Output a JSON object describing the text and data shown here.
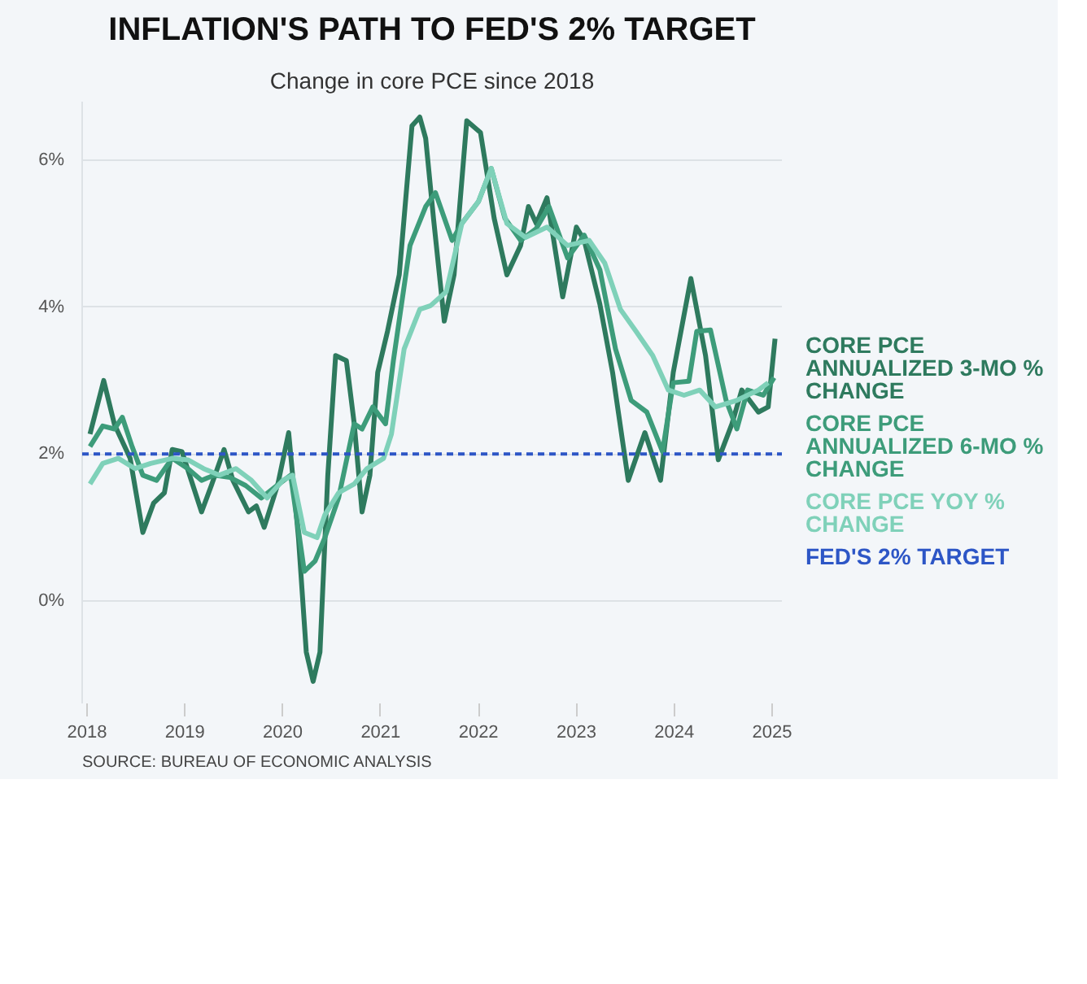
{
  "chart_data": {
    "type": "line",
    "title": "INFLATION'S PATH TO FED'S 2% TARGET",
    "subtitle": "Change in core PCE since 2018",
    "annotations": [
      "SOURCE: BUREAU OF ECONOMIC ANALYSIS"
    ],
    "xlim": [
      2017.95,
      2025.1
    ],
    "xticks": [
      2018,
      2019,
      2020,
      2021,
      2022,
      2023,
      2024,
      2025
    ],
    "ylim": [
      -1.4,
      6.8
    ],
    "yticks": [
      {
        "value": 0,
        "label": "0%"
      },
      {
        "value": 2,
        "label": "2%"
      },
      {
        "value": 4,
        "label": "4%"
      },
      {
        "value": 6,
        "label": "6%"
      }
    ],
    "grid": "y",
    "legend": "right",
    "line_style": "solid",
    "marker": "none",
    "ref_lines": [
      {
        "axis": "y",
        "value": 2,
        "label": "FED'S 2% TARGET",
        "color": "#2d56c6",
        "line_style": "dashed"
      }
    ],
    "series": [
      {
        "name": "CORE PCE ANNUALIZED 3-MO % CHANGE",
        "color": "#2e7a5e",
        "x": [
          2018.03,
          2018.17,
          2018.28,
          2018.44,
          2018.57,
          2018.68,
          2018.79,
          2018.87,
          2018.97,
          2019.17,
          2019.27,
          2019.4,
          2019.49,
          2019.65,
          2019.73,
          2019.81,
          2019.95,
          2020.06,
          2020.16,
          2020.24,
          2020.31,
          2020.38,
          2020.46,
          2020.54,
          2020.65,
          2020.73,
          2020.81,
          2020.89,
          2020.97,
          2021.07,
          2021.19,
          2021.32,
          2021.4,
          2021.46,
          2021.54,
          2021.65,
          2021.75,
          2021.88,
          2022.02,
          2022.16,
          2022.29,
          2022.43,
          2022.51,
          2022.59,
          2022.7,
          2022.86,
          2023.0,
          2023.08,
          2023.24,
          2023.37,
          2023.53,
          2023.7,
          2023.86,
          2023.99,
          2024.17,
          2024.32,
          2024.45,
          2024.59,
          2024.69,
          2024.86,
          2024.96,
          2025.03
        ],
        "values": [
          2.27,
          3.0,
          2.4,
          1.94,
          0.93,
          1.33,
          1.47,
          2.06,
          2.03,
          1.21,
          1.57,
          2.06,
          1.64,
          1.21,
          1.29,
          1.0,
          1.59,
          2.29,
          0.86,
          -0.7,
          -1.1,
          -0.7,
          1.71,
          3.34,
          3.27,
          2.41,
          1.21,
          1.71,
          3.11,
          3.67,
          4.44,
          6.47,
          6.59,
          6.3,
          5.21,
          3.81,
          4.44,
          6.54,
          6.38,
          5.21,
          4.44,
          4.84,
          5.37,
          5.14,
          5.49,
          4.14,
          5.09,
          4.91,
          4.04,
          3.11,
          1.64,
          2.29,
          1.64,
          3.11,
          4.39,
          3.34,
          1.92,
          2.41,
          2.87,
          2.57,
          2.64,
          3.57
        ]
      },
      {
        "name": "CORE PCE ANNUALIZED 6-MO % CHANGE",
        "color": "#3d9c7a",
        "x": [
          2018.03,
          2018.16,
          2018.28,
          2018.36,
          2018.46,
          2018.57,
          2018.71,
          2018.87,
          2019.03,
          2019.17,
          2019.3,
          2019.46,
          2019.62,
          2019.78,
          2019.94,
          2020.08,
          2020.22,
          2020.33,
          2020.43,
          2020.57,
          2020.73,
          2020.81,
          2020.92,
          2021.05,
          2021.13,
          2021.3,
          2021.46,
          2021.56,
          2021.73,
          2021.83,
          2022.0,
          2022.13,
          2022.27,
          2022.43,
          2022.59,
          2022.72,
          2022.91,
          2023.08,
          2023.24,
          2023.4,
          2023.56,
          2023.72,
          2023.88,
          2023.99,
          2024.15,
          2024.23,
          2024.37,
          2024.53,
          2024.64,
          2024.75,
          2024.91,
          2025.02
        ],
        "values": [
          2.1,
          2.38,
          2.34,
          2.5,
          2.1,
          1.71,
          1.64,
          1.94,
          1.8,
          1.64,
          1.71,
          1.68,
          1.57,
          1.4,
          1.57,
          1.71,
          0.4,
          0.54,
          0.86,
          1.4,
          2.41,
          2.34,
          2.64,
          2.41,
          3.27,
          4.84,
          5.37,
          5.56,
          4.91,
          5.14,
          5.44,
          5.89,
          5.21,
          4.91,
          5.07,
          5.37,
          4.67,
          4.98,
          4.51,
          3.43,
          2.73,
          2.57,
          2.03,
          2.97,
          2.99,
          3.67,
          3.69,
          2.73,
          2.34,
          2.87,
          2.8,
          3.04
        ]
      },
      {
        "name": "CORE PCE YOY % CHANGE",
        "color": "#7fd1b9",
        "x": [
          2018.03,
          2018.16,
          2018.32,
          2018.49,
          2018.65,
          2018.87,
          2019.03,
          2019.19,
          2019.35,
          2019.52,
          2019.68,
          2019.84,
          2020.0,
          2020.1,
          2020.22,
          2020.35,
          2020.43,
          2020.57,
          2020.73,
          2020.86,
          2021.03,
          2021.11,
          2021.24,
          2021.4,
          2021.51,
          2021.67,
          2021.83,
          2022.0,
          2022.13,
          2022.29,
          2022.48,
          2022.7,
          2022.91,
          2023.13,
          2023.29,
          2023.45,
          2023.61,
          2023.78,
          2023.94,
          2024.1,
          2024.26,
          2024.42,
          2024.64,
          2024.86,
          2024.96
        ],
        "values": [
          1.59,
          1.87,
          1.94,
          1.8,
          1.87,
          1.94,
          1.92,
          1.8,
          1.71,
          1.8,
          1.64,
          1.4,
          1.64,
          1.71,
          0.93,
          0.86,
          1.17,
          1.47,
          1.59,
          1.8,
          1.94,
          2.27,
          3.43,
          3.97,
          4.02,
          4.21,
          5.14,
          5.44,
          5.89,
          5.14,
          4.95,
          5.09,
          4.84,
          4.91,
          4.6,
          3.97,
          3.67,
          3.34,
          2.87,
          2.8,
          2.87,
          2.64,
          2.73,
          2.87,
          2.97
        ]
      }
    ]
  }
}
